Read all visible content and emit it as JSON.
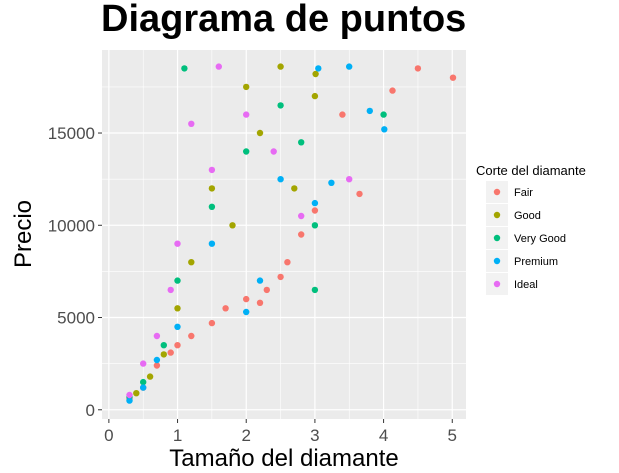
{
  "chart_data": {
    "type": "scatter",
    "title": "Diagrama de puntos",
    "xlabel": "Tamaño del diamante",
    "ylabel": "Precio",
    "xlim": [
      -0.1,
      5.2
    ],
    "ylim": [
      -500,
      19500
    ],
    "x_ticks": [
      0,
      1,
      2,
      3,
      4,
      5
    ],
    "y_ticks": [
      0,
      5000,
      10000,
      15000
    ],
    "x_tick_labels": [
      "0",
      "1",
      "2",
      "3",
      "4",
      "5"
    ],
    "y_tick_labels": [
      "0",
      "5000",
      "10000",
      "15000"
    ],
    "grid": true,
    "legend": {
      "title": "Corte del diamante",
      "position": "right"
    },
    "series": [
      {
        "name": "Fair",
        "color": "#F8766D",
        "points": [
          [
            4.5,
            18500
          ],
          [
            5.01,
            18000
          ],
          [
            4.13,
            17300
          ],
          [
            3.4,
            16000
          ],
          [
            3.65,
            11700
          ],
          [
            3.0,
            10800
          ],
          [
            2.8,
            9500
          ],
          [
            2.6,
            8000
          ],
          [
            2.5,
            7200
          ],
          [
            2.3,
            6500
          ],
          [
            2.2,
            5800
          ],
          [
            2.0,
            6000
          ],
          [
            1.7,
            5500
          ],
          [
            1.5,
            4700
          ],
          [
            1.2,
            4000
          ],
          [
            1.0,
            3500
          ],
          [
            0.9,
            3100
          ],
          [
            0.7,
            2400
          ],
          [
            0.5,
            1200
          ],
          [
            0.3,
            600
          ]
        ]
      },
      {
        "name": "Good",
        "color": "#A3A500",
        "points": [
          [
            3.01,
            18200
          ],
          [
            2.5,
            18600
          ],
          [
            2.0,
            17500
          ],
          [
            1.5,
            12000
          ],
          [
            1.2,
            8000
          ],
          [
            1.0,
            5500
          ],
          [
            0.8,
            3000
          ],
          [
            0.6,
            1800
          ],
          [
            0.4,
            900
          ],
          [
            2.7,
            12000
          ],
          [
            3.0,
            17000
          ],
          [
            2.2,
            15000
          ],
          [
            1.8,
            10000
          ]
        ]
      },
      {
        "name": "Very Good",
        "color": "#00BF7D",
        "points": [
          [
            4.0,
            16000
          ],
          [
            3.0,
            6500
          ],
          [
            2.5,
            16500
          ],
          [
            2.0,
            14000
          ],
          [
            1.5,
            11000
          ],
          [
            1.0,
            7000
          ],
          [
            0.8,
            3500
          ],
          [
            0.5,
            1500
          ],
          [
            0.3,
            700
          ],
          [
            1.1,
            18500
          ],
          [
            2.8,
            14500
          ],
          [
            3.0,
            10000
          ]
        ]
      },
      {
        "name": "Premium",
        "color": "#00B0F6",
        "points": [
          [
            4.01,
            15200
          ],
          [
            3.5,
            18600
          ],
          [
            3.8,
            16200
          ],
          [
            3.05,
            18500
          ],
          [
            3.24,
            12300
          ],
          [
            2.2,
            7000
          ],
          [
            2.0,
            5300
          ],
          [
            1.5,
            9000
          ],
          [
            1.0,
            4500
          ],
          [
            0.7,
            2700
          ],
          [
            0.5,
            1200
          ],
          [
            0.3,
            500
          ],
          [
            2.5,
            12500
          ],
          [
            3.0,
            11200
          ]
        ]
      },
      {
        "name": "Ideal",
        "color": "#E76BF3",
        "points": [
          [
            3.5,
            12500
          ],
          [
            2.8,
            10500
          ],
          [
            2.0,
            16000
          ],
          [
            1.5,
            13000
          ],
          [
            1.0,
            9000
          ],
          [
            0.7,
            4000
          ],
          [
            0.5,
            2500
          ],
          [
            0.3,
            800
          ],
          [
            1.2,
            15500
          ],
          [
            1.6,
            18600
          ],
          [
            0.9,
            6500
          ],
          [
            2.4,
            14000
          ]
        ]
      }
    ]
  }
}
